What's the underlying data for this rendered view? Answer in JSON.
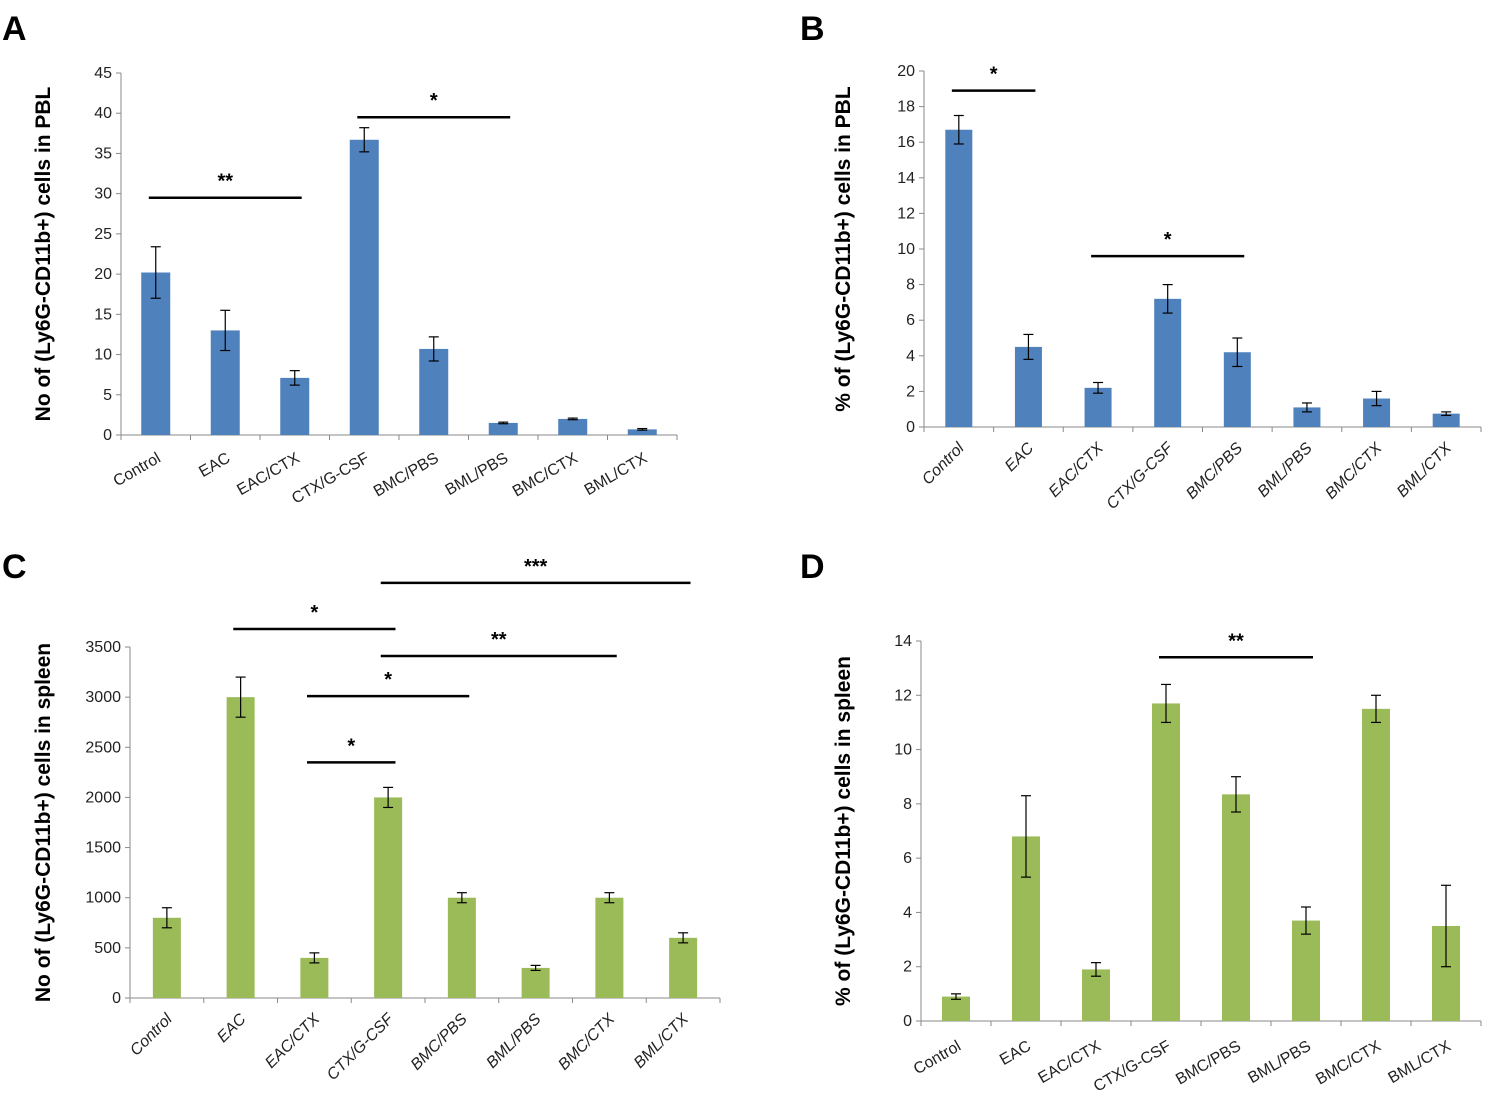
{
  "figure": {
    "panels": [
      "A",
      "B",
      "C",
      "D"
    ]
  },
  "chart_data": [
    {
      "panel": "A",
      "type": "bar",
      "categories": [
        "Control",
        "EAC",
        "EAC/CTX",
        "CTX/G-CSF",
        "BMC/PBS",
        "BML/PBS",
        "BMC/CTX",
        "BML/CTX"
      ],
      "values": [
        20.2,
        13.0,
        7.1,
        36.7,
        10.7,
        1.5,
        2.0,
        0.7
      ],
      "errors": [
        3.2,
        2.5,
        0.9,
        1.5,
        1.5,
        0.1,
        0.1,
        0.1
      ],
      "ylabel": "No of (Ly6G-CD11b+) cells in PBL",
      "ylim": [
        0,
        45
      ],
      "yticks": [
        "0",
        "5",
        "10",
        "15",
        "20",
        "25",
        "30",
        "35",
        "40",
        "45"
      ],
      "italic_categories": false,
      "color": "#4F81BD",
      "significance": [
        {
          "from": 0,
          "to": 2,
          "label": "**",
          "y": 29.5
        },
        {
          "from": 3,
          "to": 5,
          "label": "*",
          "y": 39.5
        }
      ]
    },
    {
      "panel": "B",
      "type": "bar",
      "categories": [
        "Control",
        "EAC",
        "EAC/CTX",
        "CTX/G-CSF",
        "BMC/PBS",
        "BML/PBS",
        "BMC/CTX",
        "BML/CTX"
      ],
      "values": [
        16.7,
        4.5,
        2.2,
        7.2,
        4.2,
        1.1,
        1.6,
        0.75
      ],
      "errors": [
        0.8,
        0.7,
        0.3,
        0.8,
        0.8,
        0.25,
        0.4,
        0.1
      ],
      "ylabel": "% of (Ly6G-CD11b+) cells in PBL",
      "ylim": [
        0,
        20
      ],
      "yticks": [
        "0",
        "2",
        "4",
        "6",
        "8",
        "10",
        "12",
        "14",
        "16",
        "18",
        "20"
      ],
      "italic_categories": true,
      "color": "#4F81BD",
      "significance": [
        {
          "from": 0,
          "to": 1,
          "label": "*",
          "y": 18.9
        },
        {
          "from": 2,
          "to": 4,
          "label": "*",
          "y": 9.6
        }
      ]
    },
    {
      "panel": "C",
      "type": "bar",
      "categories": [
        "Control",
        "EAC",
        "EAC/CTX",
        "CTX/G-CSF",
        "BMC/PBS",
        "BML/PBS",
        "BMC/CTX",
        "BML/CTX"
      ],
      "values": [
        800,
        3000,
        400,
        2000,
        1000,
        300,
        1000,
        600
      ],
      "errors": [
        100,
        200,
        50,
        100,
        50,
        25,
        50,
        50
      ],
      "ylabel": "No of (Ly6G-CD11b+) cells in spleen",
      "ylim": [
        0,
        3500
      ],
      "yticks": [
        "0",
        "500",
        "1000",
        "1500",
        "2000",
        "2500",
        "3000",
        "3500"
      ],
      "italic_categories": true,
      "color": "#9BBB59",
      "significance": [
        {
          "from": 2,
          "to": 3,
          "label": "*",
          "y": 2350
        },
        {
          "from": 2,
          "to": 4,
          "label": "*",
          "y": 3010
        },
        {
          "from": 3,
          "to": 6,
          "label": "**",
          "y": 3410
        },
        {
          "from": 1,
          "to": 3,
          "label": "*",
          "y": 3680
        },
        {
          "from": 3,
          "to": 7,
          "label": "***",
          "y": 4140
        }
      ]
    },
    {
      "panel": "D",
      "type": "bar",
      "categories": [
        "Control",
        "EAC",
        "EAC/CTX",
        "CTX/G-CSF",
        "BMC/PBS",
        "BML/PBS",
        "BMC/CTX",
        "BML/CTX"
      ],
      "values": [
        0.9,
        6.8,
        1.9,
        11.7,
        8.35,
        3.7,
        11.5,
        3.5
      ],
      "errors": [
        0.1,
        1.5,
        0.25,
        0.7,
        0.65,
        0.5,
        0.5,
        1.5
      ],
      "ylabel": "% of (Ly6G-CD11b+) cells in spleen",
      "ylim": [
        0,
        14
      ],
      "yticks": [
        "0",
        "2",
        "4",
        "6",
        "8",
        "10",
        "12",
        "14"
      ],
      "italic_categories": false,
      "color": "#9BBB59",
      "significance": [
        {
          "from": 3,
          "to": 5,
          "label": "**",
          "y": 13.4
        }
      ]
    }
  ]
}
